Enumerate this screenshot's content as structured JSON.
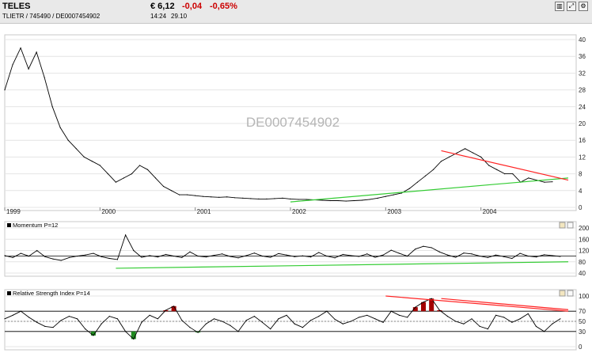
{
  "header": {
    "name": "TELES",
    "identifiers": "TLIETR  /  745490  /  DE0007454902",
    "price": "€ 6,12",
    "change": "-0,04",
    "change_pct": "-0,65%",
    "time": "14:24",
    "date": "29.10",
    "buttons": [
      {
        "icon": "bar-chart-icon",
        "glyph": "▥"
      },
      {
        "icon": "zoom-icon",
        "glyph": "⤢"
      },
      {
        "icon": "settings-icon",
        "glyph": "⚙"
      }
    ]
  },
  "chart_data": [
    {
      "type": "line",
      "watermark": "DE0007454902",
      "x_labels": [
        "1999",
        "2000",
        "2001",
        "2002",
        "2003",
        "2004"
      ],
      "y_ticks": [
        0,
        4,
        8,
        12,
        16,
        20,
        24,
        28,
        32,
        36,
        40
      ],
      "ylim": [
        0,
        40
      ],
      "series": [
        {
          "color": "#000000",
          "x": [
            "1999-01",
            "1999-02",
            "1999-03",
            "1999-04",
            "1999-05",
            "1999-06",
            "1999-07",
            "1999-08",
            "1999-09",
            "1999-10",
            "1999-11",
            "1999-12",
            "2000-01",
            "2000-02",
            "2000-03",
            "2000-04",
            "2000-05",
            "2000-06",
            "2000-07",
            "2000-08",
            "2000-09",
            "2000-10",
            "2000-11",
            "2000-12",
            "2001-01",
            "2001-02",
            "2001-03",
            "2001-04",
            "2001-05",
            "2001-06",
            "2001-07",
            "2001-08",
            "2001-09",
            "2001-10",
            "2001-11",
            "2001-12",
            "2002-01",
            "2002-02",
            "2002-03",
            "2002-04",
            "2002-05",
            "2002-06",
            "2002-07",
            "2002-08",
            "2002-09",
            "2002-10",
            "2002-11",
            "2002-12",
            "2003-01",
            "2003-02",
            "2003-03",
            "2003-04",
            "2003-05",
            "2003-06",
            "2003-07",
            "2003-08",
            "2003-09",
            "2003-10",
            "2003-11",
            "2003-12",
            "2004-01",
            "2004-02",
            "2004-03",
            "2004-04",
            "2004-05",
            "2004-06",
            "2004-07",
            "2004-08",
            "2004-09",
            "2004-10"
          ],
          "y": [
            28,
            34,
            38,
            33,
            37,
            31,
            24,
            19,
            16,
            14,
            12,
            11,
            10,
            8,
            6,
            7,
            8,
            10,
            9,
            7,
            5,
            4,
            3,
            3,
            2.8,
            2.6,
            2.5,
            2.4,
            2.5,
            2.3,
            2.2,
            2.1,
            2.0,
            2.0,
            2.1,
            2.2,
            2.0,
            1.9,
            1.9,
            1.8,
            1.7,
            1.6,
            1.6,
            1.5,
            1.6,
            1.7,
            1.9,
            2.2,
            2.6,
            3.0,
            3.4,
            4.5,
            6,
            7.5,
            9,
            11,
            12,
            13,
            14,
            13,
            12,
            10,
            9,
            8,
            8,
            6,
            7,
            6.5,
            6,
            6.1
          ]
        }
      ],
      "trendlines": [
        {
          "color": "#33cc33",
          "from": [
            "2002-01",
            1.3
          ],
          "to": [
            "2004-12",
            7.0
          ]
        },
        {
          "color": "#ff2222",
          "from": [
            "2003-08",
            13.5
          ],
          "to": [
            "2004-12",
            6.5
          ]
        }
      ]
    },
    {
      "type": "line",
      "title": "Momentum P=12",
      "y_ticks": [
        40,
        80,
        120,
        160,
        200
      ],
      "ylim": [
        40,
        200
      ],
      "reference_line": 100,
      "series": [
        {
          "color": "#000000",
          "y": [
            102,
            95,
            110,
            100,
            120,
            98,
            90,
            85,
            95,
            100,
            104,
            110,
            98,
            92,
            88,
            175,
            120,
            96,
            102,
            97,
            106,
            100,
            95,
            115,
            100,
            97,
            103,
            108,
            99,
            94,
            102,
            111,
            100,
            96,
            109,
            104,
            98,
            101,
            97,
            113,
            100,
            94,
            106,
            102,
            99,
            108,
            96,
            104,
            121,
            110,
            100,
            125,
            135,
            130,
            115,
            104,
            96,
            111,
            108,
            100,
            95,
            104,
            98,
            92,
            110,
            100,
            97,
            105,
            102,
            99
          ]
        }
      ],
      "trendlines": [
        {
          "color": "#33cc33",
          "from": [
            "2000-03",
            57
          ],
          "to": [
            "2004-12",
            80
          ]
        }
      ]
    },
    {
      "type": "line",
      "title": "Relative Strength Index P=14",
      "y_ticks": [
        0,
        30,
        50,
        70,
        100
      ],
      "ylim": [
        0,
        100
      ],
      "bands": [
        30,
        70
      ],
      "mid_line": 50,
      "overbought_color": "#a30000",
      "oversold_color": "#1f8a1f",
      "series": [
        {
          "color": "#000000",
          "y": [
            55,
            62,
            70,
            58,
            48,
            40,
            38,
            52,
            60,
            55,
            35,
            22,
            45,
            60,
            55,
            30,
            15,
            48,
            62,
            55,
            72,
            80,
            52,
            38,
            28,
            45,
            55,
            50,
            42,
            30,
            52,
            60,
            48,
            35,
            55,
            62,
            45,
            38,
            52,
            60,
            70,
            54,
            45,
            50,
            58,
            62,
            55,
            48,
            70,
            62,
            58,
            78,
            88,
            95,
            72,
            60,
            50,
            45,
            55,
            40,
            35,
            62,
            58,
            48,
            55,
            65,
            40,
            30,
            45,
            55
          ]
        }
      ],
      "trendlines": [
        {
          "color": "#ff2222",
          "from": [
            "2003-01",
            100
          ],
          "to": [
            "2004-12",
            70
          ]
        },
        {
          "color": "#ff2222",
          "from": [
            "2003-08",
            95
          ],
          "to": [
            "2004-12",
            73
          ]
        }
      ]
    }
  ]
}
